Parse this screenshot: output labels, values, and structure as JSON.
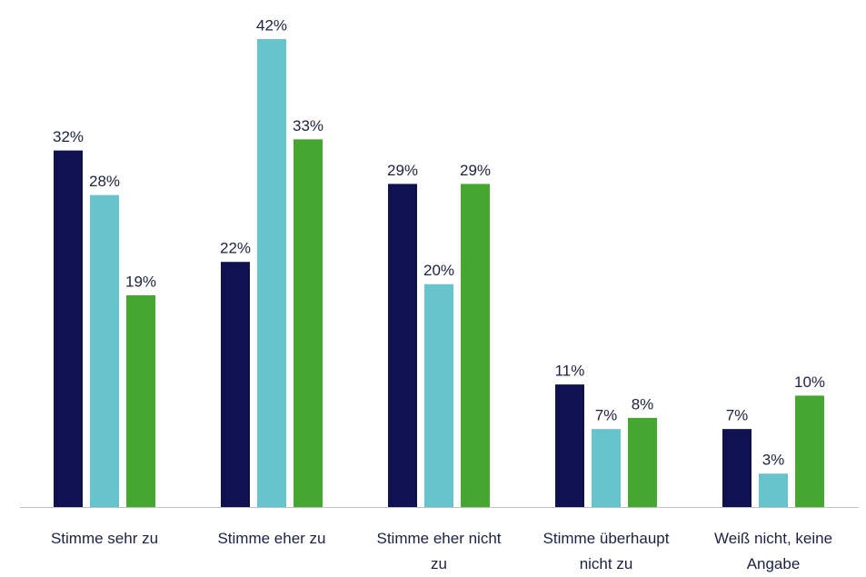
{
  "chart_data": {
    "type": "bar",
    "categories": [
      "Stimme sehr zu",
      "Stimme eher zu",
      "Stimme eher nicht\nzu",
      "Stimme überhaupt\nnicht zu",
      "Weiß nicht, keine\nAngabe"
    ],
    "series": [
      {
        "color": "#0f1150",
        "values": [
          32,
          22,
          29,
          11,
          7
        ],
        "value_labels": [
          "32%",
          "22%",
          "29%",
          "11%",
          "7%"
        ]
      },
      {
        "color": "#67c4cd",
        "values": [
          28,
          42,
          20,
          7,
          3
        ],
        "value_labels": [
          "28%",
          "42%",
          "20%",
          "7%",
          "3%"
        ]
      },
      {
        "color": "#45a72f",
        "values": [
          19,
          33,
          29,
          8,
          10
        ],
        "value_labels": [
          "19%",
          "33%",
          "29%",
          "8%",
          "10%"
        ]
      }
    ]
  }
}
